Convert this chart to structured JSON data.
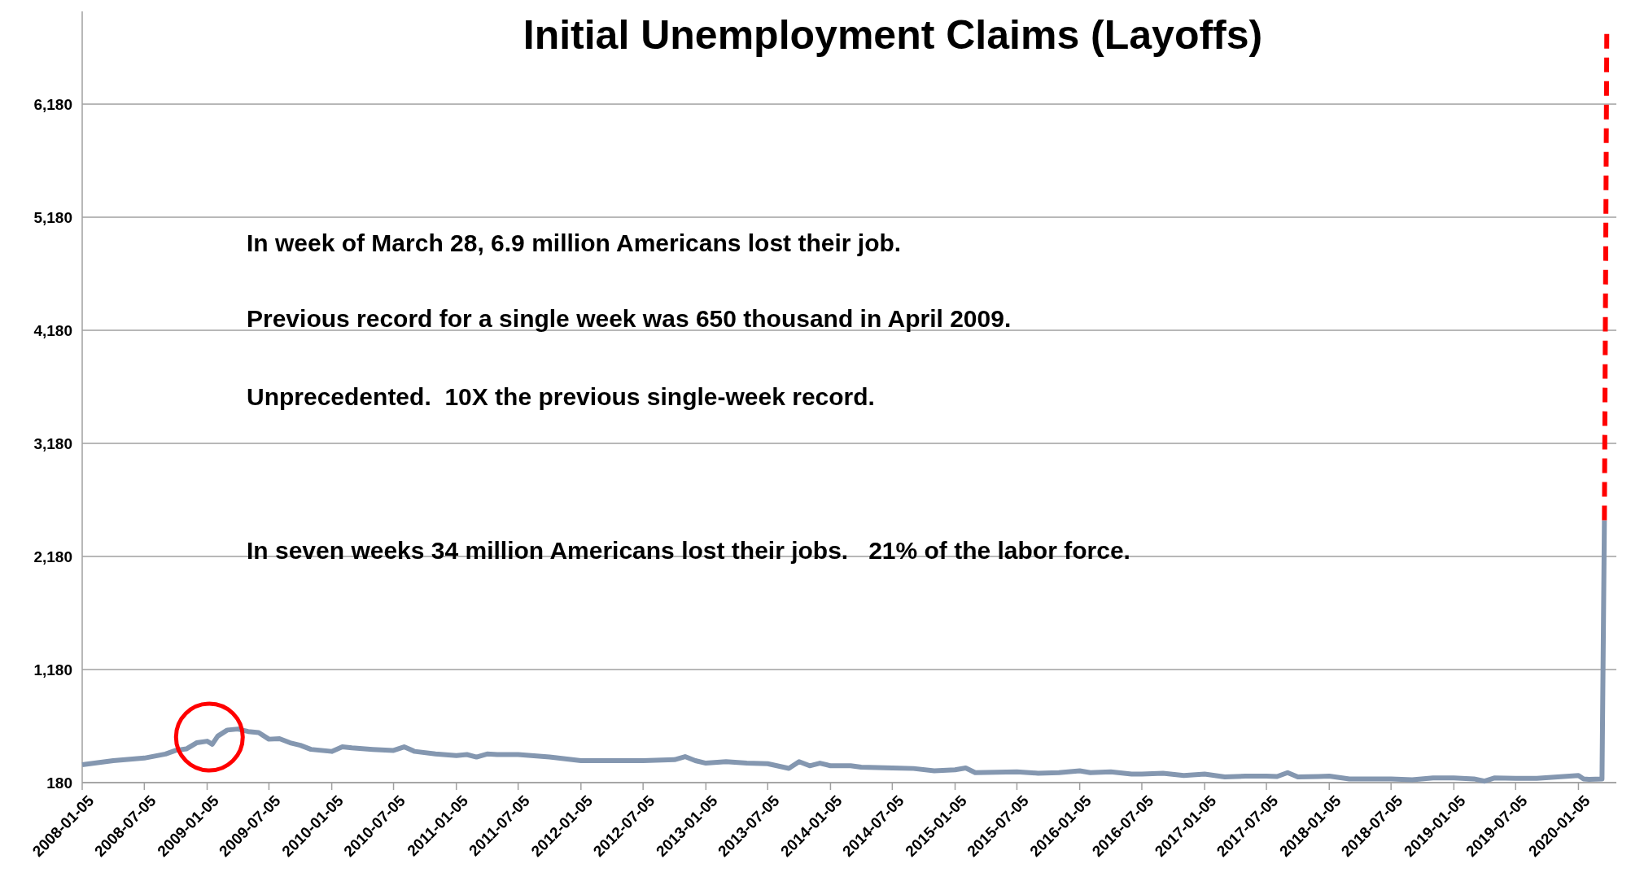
{
  "chart_data": {
    "type": "line",
    "title": "Initial Unemployment Claims (Layoffs)",
    "xlim": [
      "2008-01-05",
      "2020-04-25"
    ],
    "xticks": [
      "2008-01-05",
      "2008-07-05",
      "2009-01-05",
      "2009-07-05",
      "2010-01-05",
      "2010-07-05",
      "2011-01-05",
      "2011-07-05",
      "2012-01-05",
      "2012-07-05",
      "2013-01-05",
      "2013-07-05",
      "2014-01-05",
      "2014-07-05",
      "2015-01-05",
      "2015-07-05",
      "2016-01-05",
      "2016-07-05",
      "2017-01-05",
      "2017-07-05",
      "2018-01-05",
      "2018-07-05",
      "2019-01-05",
      "2019-07-05",
      "2020-01-05"
    ],
    "ylim": [
      180,
      7000
    ],
    "yticks": [
      {
        "value": 180,
        "label": "180"
      },
      {
        "value": 1180,
        "label": "1,180"
      },
      {
        "value": 2180,
        "label": "2,180"
      },
      {
        "value": 3180,
        "label": "3,180"
      },
      {
        "value": 4180,
        "label": "4,180"
      },
      {
        "value": 5180,
        "label": "5,180"
      },
      {
        "value": 6180,
        "label": "6,180"
      }
    ],
    "grid": "y",
    "series": [
      {
        "color": "#8497b0",
        "line_style": "solid",
        "x": [
          "2008-01-05",
          "2008-04-05",
          "2008-07-05",
          "2008-09-05",
          "2008-10-05",
          "2008-11-05",
          "2008-12-05",
          "2009-01-05",
          "2009-01-20",
          "2009-02-05",
          "2009-03-05",
          "2009-04-05",
          "2009-05-05",
          "2009-06-05",
          "2009-07-05",
          "2009-08-05",
          "2009-09-05",
          "2009-10-05",
          "2009-11-05",
          "2010-01-05",
          "2010-02-05",
          "2010-03-05",
          "2010-05-05",
          "2010-07-05",
          "2010-08-05",
          "2010-09-05",
          "2010-11-05",
          "2011-01-05",
          "2011-02-05",
          "2011-03-05",
          "2011-04-05",
          "2011-05-05",
          "2011-07-05",
          "2011-10-05",
          "2012-01-05",
          "2012-04-05",
          "2012-07-05",
          "2012-10-05",
          "2012-11-05",
          "2012-12-05",
          "2013-01-05",
          "2013-03-05",
          "2013-05-05",
          "2013-07-05",
          "2013-09-05",
          "2013-10-05",
          "2013-11-05",
          "2013-12-05",
          "2014-01-05",
          "2014-03-05",
          "2014-04-05",
          "2014-07-05",
          "2014-09-05",
          "2014-11-05",
          "2015-01-05",
          "2015-02-05",
          "2015-03-05",
          "2015-05-05",
          "2015-07-05",
          "2015-09-05",
          "2015-11-05",
          "2016-01-05",
          "2016-02-05",
          "2016-04-05",
          "2016-06-05",
          "2016-07-05",
          "2016-09-05",
          "2016-11-05",
          "2017-01-05",
          "2017-03-05",
          "2017-05-05",
          "2017-07-05",
          "2017-08-05",
          "2017-09-05",
          "2017-10-05",
          "2017-12-05",
          "2018-01-05",
          "2018-03-05",
          "2018-05-05",
          "2018-07-05",
          "2018-09-05",
          "2018-11-05",
          "2019-01-05",
          "2019-03-05",
          "2019-04-05",
          "2019-05-05",
          "2019-07-05",
          "2019-09-05",
          "2019-11-05",
          "2020-01-05",
          "2020-01-20",
          "2020-02-05",
          "2020-03-14",
          "2020-03-21"
        ],
        "values": [
          338,
          374,
          397,
          433,
          465,
          478,
          532,
          546,
          519,
          591,
          645,
          654,
          632,
          623,
          564,
          568,
          532,
          510,
          474,
          456,
          496,
          487,
          474,
          465,
          496,
          456,
          433,
          419,
          428,
          406,
          433,
          428,
          428,
          406,
          374,
          374,
          374,
          383,
          410,
          374,
          352,
          365,
          352,
          347,
          306,
          365,
          329,
          352,
          329,
          329,
          316,
          309,
          305,
          284,
          293,
          309,
          268,
          272,
          276,
          263,
          268,
          284,
          268,
          276,
          255,
          255,
          263,
          243,
          255,
          230,
          238,
          238,
          234,
          268,
          230,
          234,
          238,
          213,
          213,
          213,
          205,
          222,
          222,
          213,
          193,
          222,
          218,
          218,
          230,
          243,
          213,
          209,
          213,
          2500
        ]
      },
      {
        "color": "#ff0000",
        "line_style": "dashed",
        "x": [
          "2020-03-21",
          "2020-03-28"
        ],
        "values": [
          2500,
          6800
        ]
      }
    ],
    "annotations": [
      "In week of March 28, 6.9 million Americans lost their job.",
      "Previous record for a single week was 650 thousand in April 2009.",
      "Unprecedented.  10X the previous single-week record.",
      "In seven weeks 34 million Americans lost their jobs.   21% of the labor force."
    ]
  }
}
